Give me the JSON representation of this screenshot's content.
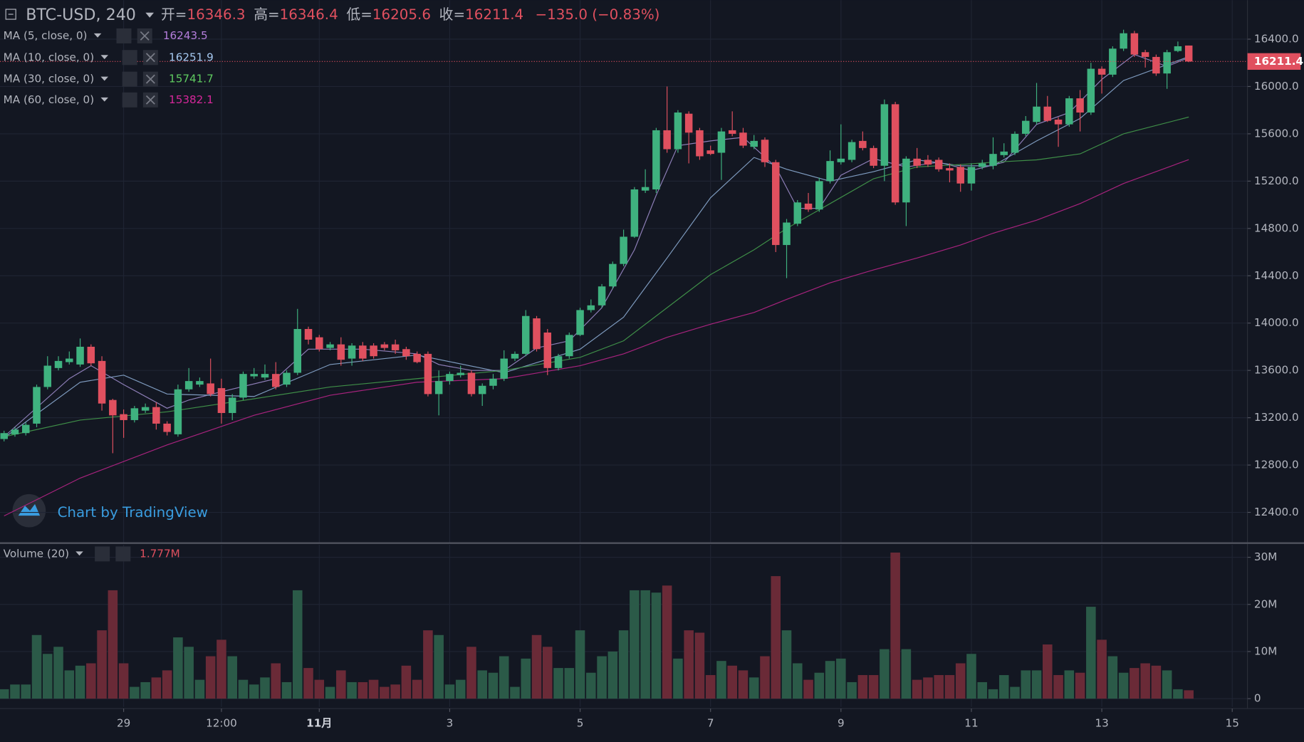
{
  "chart_data": {
    "type": "candlestick",
    "symbol": "BTC-USD, 240",
    "ohlc_labels": [
      "开=",
      "高=",
      "低=",
      "收="
    ],
    "change": "−135.0 (−0.83%)",
    "watermark": "Chart by TradingView",
    "up_color": "#3fb27f",
    "down_color": "#e0505f",
    "volume_up_color": "#2b5a48",
    "volume_down_color": "#6a2a37",
    "grid": true,
    "xlim": [
      -0.375,
      114.4
    ],
    "ylim": [
      12147,
      16730
    ],
    "yticks": [
      {
        "value": 12400,
        "label": "12400.0"
      },
      {
        "value": 12800,
        "label": "12800.0"
      },
      {
        "value": 13200,
        "label": "13200.0"
      },
      {
        "value": 13600,
        "label": "13600.0"
      },
      {
        "value": 14000,
        "label": "14000.0"
      },
      {
        "value": 14400,
        "label": "14400.0"
      },
      {
        "value": 14800,
        "label": "14800.0"
      },
      {
        "value": 15200,
        "label": "15200.0"
      },
      {
        "value": 15600,
        "label": "15600.0"
      },
      {
        "value": 16000,
        "label": "16000.0"
      },
      {
        "value": 16400,
        "label": "16400.0"
      }
    ],
    "xticks": [
      {
        "value": 11,
        "label": "29"
      },
      {
        "value": 20,
        "label": "12:00"
      },
      {
        "value": 29,
        "label": "11月"
      },
      {
        "value": 41,
        "label": "3"
      },
      {
        "value": 53,
        "label": "5"
      },
      {
        "value": 65,
        "label": "7"
      },
      {
        "value": 77,
        "label": "9"
      },
      {
        "value": 89,
        "label": "11"
      },
      {
        "value": 101,
        "label": "13"
      },
      {
        "value": 113,
        "label": "15"
      }
    ],
    "candles": {
      "open": [
        13020,
        13060,
        13070,
        13150,
        13460,
        13620,
        13670,
        13650,
        13800,
        13680,
        13350,
        13230,
        13180,
        13260,
        13290,
        13150,
        13060,
        13440,
        13480,
        13490,
        13450,
        13240,
        13370,
        13550,
        13540,
        13570,
        13480,
        13580,
        13950,
        13880,
        13790,
        13820,
        13700,
        13810,
        13810,
        13820,
        13820,
        13780,
        13740,
        13740,
        13400,
        13510,
        13560,
        13580,
        13400,
        13470,
        13530,
        13700,
        13740,
        14040,
        13920,
        13620,
        13720,
        13900,
        14110,
        14150,
        14310,
        14500,
        14730,
        15120,
        15130,
        15630,
        15470,
        15770,
        15630,
        15460,
        15440,
        15630,
        15610,
        15490,
        15550,
        15360,
        14660,
        14840,
        15010,
        14960,
        15200,
        15360,
        15380,
        15540,
        15480,
        15330,
        15850,
        15020,
        15390,
        15380,
        15380,
        15310,
        15320,
        15180,
        15320,
        15330,
        15420,
        15440,
        15600,
        15700,
        15830,
        15720,
        15680,
        15900,
        15780,
        16150,
        16100,
        16320,
        16450,
        16290,
        16250,
        16110,
        16300,
        16346.3
      ],
      "high": [
        13090,
        13120,
        13160,
        13480,
        13720,
        13720,
        13760,
        13870,
        13820,
        13720,
        13360,
        13270,
        13300,
        13320,
        13330,
        13170,
        13480,
        13620,
        13540,
        13700,
        13530,
        13400,
        13590,
        13620,
        13650,
        13670,
        13600,
        14120,
        13970,
        13900,
        13840,
        13880,
        13830,
        13840,
        13830,
        13840,
        13860,
        13800,
        13760,
        13760,
        13600,
        13590,
        13640,
        13600,
        13490,
        13570,
        13770,
        13760,
        14110,
        14060,
        13950,
        13740,
        13920,
        14130,
        14200,
        14330,
        14520,
        14790,
        15150,
        15300,
        15650,
        16000,
        15800,
        15790,
        15650,
        15500,
        15650,
        15790,
        15650,
        15590,
        15570,
        15380,
        14880,
        15040,
        15100,
        15230,
        15460,
        15680,
        15550,
        15620,
        15500,
        15890,
        15870,
        15410,
        15480,
        15420,
        15400,
        15350,
        15340,
        15350,
        15380,
        15570,
        15520,
        15620,
        15750,
        16030,
        15920,
        15740,
        15920,
        15970,
        16200,
        16170,
        16340,
        16480,
        16470,
        16310,
        16270,
        16310,
        16380,
        16346.4
      ],
      "low": [
        13000,
        13040,
        13050,
        13120,
        13440,
        13600,
        13650,
        13630,
        13640,
        13260,
        12900,
        13030,
        13160,
        13240,
        13100,
        13050,
        13040,
        13420,
        13460,
        13380,
        13150,
        13180,
        13350,
        13530,
        13520,
        13440,
        13460,
        13560,
        13820,
        13760,
        13770,
        13640,
        13640,
        13680,
        13700,
        13770,
        13740,
        13690,
        13660,
        13380,
        13220,
        13480,
        13540,
        13380,
        13300,
        13440,
        13510,
        13680,
        13720,
        13760,
        13560,
        13600,
        13700,
        13890,
        14090,
        14130,
        14290,
        14480,
        14720,
        15100,
        15100,
        15440,
        15440,
        15350,
        15380,
        15420,
        15210,
        15580,
        15480,
        15470,
        15320,
        14600,
        14380,
        14820,
        14940,
        14940,
        15180,
        15340,
        15360,
        15460,
        15310,
        15200,
        15000,
        14820,
        15310,
        15320,
        15280,
        15190,
        15110,
        15120,
        15300,
        15300,
        15400,
        15420,
        15580,
        15680,
        15700,
        15490,
        15660,
        15620,
        15760,
        15940,
        16080,
        16300,
        16250,
        16160,
        16090,
        15980,
        16290,
        16205.6
      ],
      "close": [
        13070,
        13100,
        13140,
        13460,
        13640,
        13680,
        13700,
        13800,
        13660,
        13320,
        13220,
        13180,
        13280,
        13290,
        13150,
        13080,
        13440,
        13510,
        13510,
        13400,
        13240,
        13370,
        13570,
        13570,
        13570,
        13460,
        13580,
        13950,
        13860,
        13780,
        13820,
        13690,
        13810,
        13700,
        13720,
        13790,
        13770,
        13720,
        13670,
        13400,
        13510,
        13570,
        13580,
        13400,
        13470,
        13530,
        13700,
        13740,
        14060,
        13780,
        13620,
        13720,
        13900,
        14110,
        14150,
        14310,
        14500,
        14730,
        15130,
        15150,
        15630,
        15470,
        15780,
        15610,
        15410,
        15430,
        15620,
        15600,
        15500,
        15540,
        15360,
        14660,
        14850,
        15020,
        14960,
        15200,
        15370,
        15390,
        15530,
        15480,
        15330,
        15850,
        15020,
        15390,
        15330,
        15340,
        15300,
        15290,
        15180,
        15320,
        15350,
        15430,
        15450,
        15600,
        15710,
        15830,
        15710,
        15680,
        15900,
        15780,
        16150,
        16100,
        16320,
        16450,
        16270,
        16250,
        16110,
        16290,
        16340,
        16211.4
      ],
      "volume": [
        2,
        3,
        3,
        13.5,
        9.5,
        11,
        6,
        7,
        7.5,
        14.5,
        23,
        7.5,
        2.5,
        3.5,
        4.5,
        6,
        13,
        11,
        4,
        9,
        12.5,
        9,
        4,
        3,
        4.5,
        7.5,
        3.5,
        23,
        6.5,
        4,
        2.5,
        6,
        3.5,
        3.5,
        4,
        2.5,
        3,
        7,
        4,
        14.5,
        13.5,
        3,
        4,
        11,
        6,
        5.5,
        9,
        2.5,
        8.5,
        13.5,
        11,
        6.5,
        6.5,
        14.5,
        5.5,
        9,
        10,
        14.5,
        23,
        23,
        22.5,
        24,
        8.5,
        14.5,
        14,
        5,
        8,
        7,
        6,
        4.5,
        9,
        26,
        14.5,
        7.5,
        4,
        5.5,
        8,
        8.5,
        3.5,
        5,
        5,
        10.5,
        31,
        10.5,
        4,
        4.5,
        5,
        5,
        7.5,
        9.5,
        3.5,
        2,
        5,
        2.5,
        6,
        6,
        11.5,
        5,
        6,
        5.5,
        19.5,
        12.5,
        9,
        5.5,
        6.5,
        7.5,
        7,
        6,
        2,
        1.777
      ]
    },
    "moving_averages": [
      {
        "name": "MA (5, close, 0)",
        "color": "#b57edc",
        "line_color": "#8e7fb8",
        "x": [
          0,
          6,
          8,
          11,
          15,
          17,
          20,
          25,
          28,
          33,
          38,
          40,
          43,
          46,
          49,
          52,
          55,
          58,
          60,
          62,
          65,
          68,
          71,
          73,
          75,
          77,
          80,
          83,
          86,
          89,
          92,
          95,
          98,
          101,
          104,
          107,
          109
        ],
        "values": [
          13040,
          13530,
          13640,
          13480,
          13280,
          13350,
          13420,
          13530,
          13780,
          13780,
          13740,
          13650,
          13600,
          13600,
          13790,
          13850,
          14130,
          14620,
          15080,
          15500,
          15540,
          15570,
          15320,
          14970,
          14970,
          15250,
          15390,
          15320,
          15360,
          15290,
          15360,
          15680,
          15780,
          16060,
          16270,
          16170,
          16243.5
        ]
      },
      {
        "name": "MA (10, close, 0)",
        "color": "#a5c8f0",
        "line_color": "#7f9cc0",
        "x": [
          0,
          7,
          11,
          15,
          23,
          30,
          38,
          46,
          53,
          57,
          61,
          65,
          69,
          72,
          76,
          80,
          84,
          88,
          91,
          95,
          99,
          103,
          109
        ],
        "values": [
          13030,
          13500,
          13560,
          13400,
          13380,
          13650,
          13730,
          13580,
          13780,
          14050,
          14550,
          15060,
          15400,
          15300,
          15200,
          15280,
          15380,
          15330,
          15330,
          15540,
          15730,
          16050,
          16251.9
        ]
      },
      {
        "name": "MA (30, close, 0)",
        "color": "#5fcb60",
        "line_color": "#3f8f48",
        "x": [
          0,
          7,
          15,
          23,
          30,
          38,
          46,
          53,
          57,
          61,
          65,
          69,
          72,
          76,
          80,
          84,
          88,
          91,
          95,
          99,
          103,
          109
        ],
        "values": [
          13040,
          13180,
          13250,
          13360,
          13460,
          13530,
          13600,
          13710,
          13850,
          14130,
          14410,
          14620,
          14800,
          15010,
          15220,
          15320,
          15340,
          15360,
          15380,
          15430,
          15600,
          15741.7
        ]
      },
      {
        "name": "MA (60, close, 0)",
        "color": "#d5279a",
        "line_color": "#a8237e",
        "x": [
          0,
          7,
          15,
          23,
          30,
          38,
          46,
          53,
          57,
          61,
          65,
          69,
          72,
          76,
          80,
          84,
          88,
          91,
          95,
          99,
          103,
          109
        ],
        "values": [
          12370,
          12690,
          12970,
          13220,
          13390,
          13500,
          13530,
          13640,
          13740,
          13880,
          13990,
          14090,
          14200,
          14340,
          14450,
          14550,
          14660,
          14760,
          14870,
          15010,
          15180,
          15382.1
        ]
      }
    ],
    "volume_name": "Volume (20)",
    "volume_label": "1.777M",
    "volume_ylim": [
      -1.76,
      32.65
    ],
    "volume_yticks": [
      0,
      {
        "value": 10,
        "label": "10M"
      },
      {
        "value": 20,
        "label": "20M"
      },
      {
        "value": 30,
        "label": "30M"
      }
    ]
  }
}
